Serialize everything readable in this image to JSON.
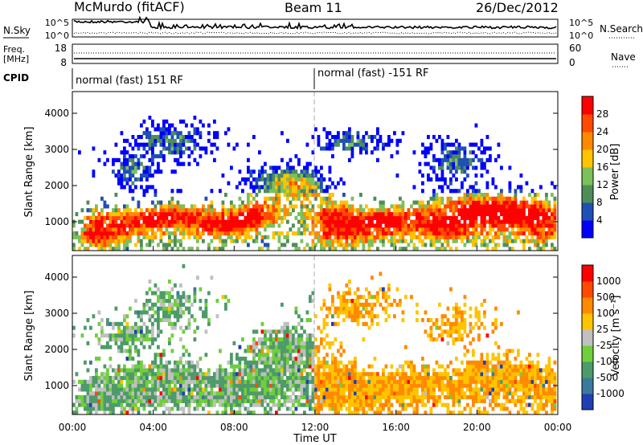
{
  "header": {
    "site": "McMurdo (fitACF)",
    "beam": "Beam 11",
    "date": "26/Dec/2012"
  },
  "noise_panel": {
    "left_label": "N.Sky",
    "right_label": "N.Search",
    "left_ticks": [
      "10^5",
      "10^0"
    ],
    "right_ticks": [
      "10^5",
      "10^0"
    ]
  },
  "freq_panel": {
    "left_label_line1": "Freq.",
    "left_label_line2": "[MHz]",
    "right_label": "Nave",
    "left_ticks": [
      "18",
      "8"
    ],
    "right_ticks": [
      "60",
      "0"
    ]
  },
  "cpid_panel": {
    "label": "CPID",
    "segments": [
      {
        "text": "normal (fast) 151 RF",
        "start_hour": 0,
        "end_hour": 12
      },
      {
        "text": "normal (fast) -151 RF",
        "start_hour": 12,
        "end_hour": 24
      }
    ]
  },
  "chart_data": [
    {
      "type": "heatmap",
      "name": "power",
      "ylabel": "Slant Range [km]",
      "ylim": [
        200,
        4600
      ],
      "yticks": [
        1000,
        2000,
        3000,
        4000
      ],
      "x_range_hours": [
        0,
        24
      ],
      "colorbar": {
        "title": "Power [dB]",
        "ticks": [
          "4",
          "8",
          "12",
          "16",
          "20",
          "24",
          "28"
        ],
        "colors": [
          "#0000ff",
          "#1f50b4",
          "#4e8d58",
          "#7cc05a",
          "#ffc400",
          "#ff8a00",
          "#ff4a00",
          "#ff0000"
        ]
      }
    },
    {
      "type": "heatmap",
      "name": "velocity",
      "ylabel": "Slant Range [km]",
      "ylim": [
        200,
        4600
      ],
      "yticks": [
        1000,
        2000,
        3000,
        4000
      ],
      "x_range_hours": [
        0,
        24
      ],
      "xticks": [
        "00:00",
        "04:00",
        "08:00",
        "12:00",
        "16:00",
        "20:00",
        "00:00"
      ],
      "xlabel": "Time UT",
      "colorbar": {
        "title": "Velocity [m s⁻¹]",
        "ticks": [
          "1000",
          "500",
          "100",
          "25",
          "-25",
          "-100",
          "-500",
          "-1000"
        ],
        "colors": [
          "#1f3fb4",
          "#3a7a9c",
          "#4e9a6a",
          "#6fcf3a",
          "#c0c0c0",
          "#ffc400",
          "#ff8a00",
          "#ff4a00",
          "#ff0000"
        ]
      }
    }
  ]
}
